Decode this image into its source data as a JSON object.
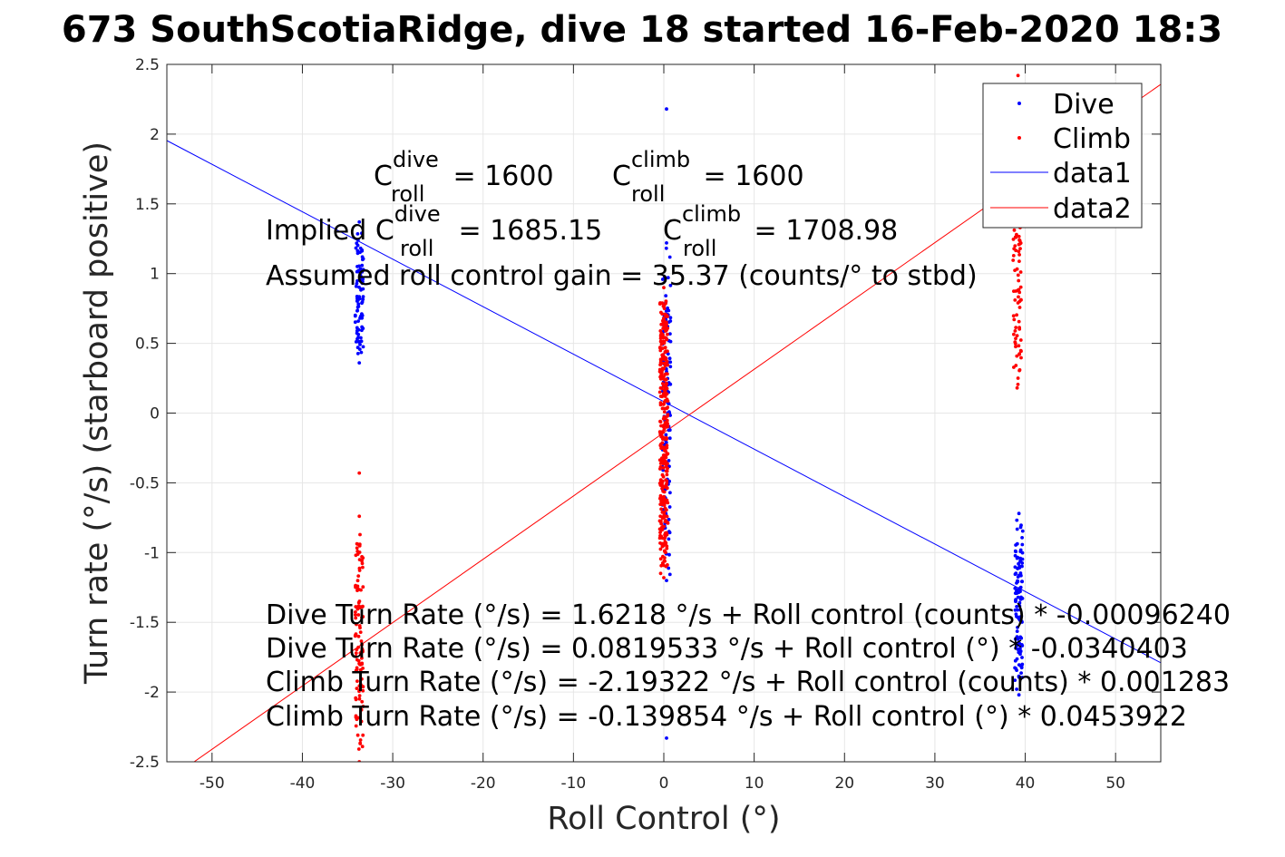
{
  "chart_data": {
    "type": "scatter",
    "title": "673 SouthScotiaRidge, dive 18 started 16-Feb-2020 18:3",
    "xlabel": "Roll Control (°)",
    "ylabel": "Turn rate (°/s) (starboard positive)",
    "xlim": [
      -55,
      55
    ],
    "ylim": [
      -2.5,
      2.5
    ],
    "xticks": [
      -50,
      -40,
      -30,
      -20,
      -10,
      0,
      10,
      20,
      30,
      40,
      50
    ],
    "yticks": [
      -2.5,
      -2,
      -1.5,
      -1,
      -0.5,
      0,
      0.5,
      1,
      1.5,
      2,
      2.5
    ],
    "xtick_labels": [
      "-50",
      "-40",
      "-30",
      "-20",
      "-10",
      "0",
      "10",
      "20",
      "30",
      "40",
      "50"
    ],
    "ytick_labels": [
      "-2.5",
      "-2",
      "-1.5",
      "-1",
      "-0.5",
      "0",
      "0.5",
      "1",
      "1.5",
      "2",
      "2.5"
    ],
    "grid": true,
    "legend_position": "top-right",
    "series": [
      {
        "name": "Dive",
        "kind": "points",
        "color": "#0000ff",
        "clusters": [
          {
            "x": -33.7,
            "ymin": 0.36,
            "ymax": 1.37,
            "count": 90
          },
          {
            "x": 0.3,
            "ymin": -1.2,
            "ymax": 1.22,
            "count": 110
          },
          {
            "x": 39.3,
            "ymin": -2.02,
            "ymax": -0.72,
            "count": 110
          }
        ],
        "points": [
          [
            0.3,
            2.18
          ],
          [
            0.3,
            -2.33
          ]
        ]
      },
      {
        "name": "Climb",
        "kind": "points",
        "color": "#ff0000",
        "clusters": [
          {
            "x": -33.7,
            "ymin": -2.5,
            "ymax": -0.74,
            "count": 110
          },
          {
            "x": 0.0,
            "ymin": -1.18,
            "ymax": 0.9,
            "count": 330
          },
          {
            "x": 39.1,
            "ymin": 0.18,
            "ymax": 1.45,
            "count": 70
          }
        ],
        "points": [
          [
            -33.7,
            -0.43
          ],
          [
            39.2,
            2.42
          ]
        ]
      },
      {
        "name": "data1",
        "kind": "line",
        "color": "#0000ff",
        "x": [
          -55,
          55
        ],
        "y": [
          1.954,
          -1.79
        ]
      },
      {
        "name": "data2",
        "kind": "line",
        "color": "#ff0000",
        "x": [
          -55,
          55
        ],
        "y": [
          -2.637,
          2.357
        ]
      }
    ],
    "annotations": {
      "c_dive_main": "C",
      "c_dive_sup": "dive",
      "c_dive_sub": "roll",
      "c_dive_val": " = 1600",
      "c_climb_main": "C",
      "c_climb_sup": "climb",
      "c_climb_sub": "roll",
      "c_climb_val": " = 1600",
      "implied_prefix": "Implied C",
      "implied_dive_sup": "dive",
      "implied_dive_sub": "roll",
      "implied_dive_val": " = 1685.15",
      "implied_climb_main": "C",
      "implied_climb_sup": "climb",
      "implied_climb_sub": "roll",
      "implied_climb_val": " = 1708.98",
      "gain": "Assumed roll control gain = 35.37 (counts/° to stbd)",
      "eq1": "Dive Turn Rate (°/s) = 1.6218 °/s + Roll control (counts) * -0.00096240",
      "eq2": "Dive Turn Rate (°/s) = 0.0819533 °/s + Roll control (°) * -0.0340403",
      "eq3": "Climb Turn Rate (°/s) = -2.19322 °/s + Roll control (counts) * 0.001283",
      "eq4": "Climb Turn Rate (°/s) = -0.139854 °/s + Roll control (°) * 0.0453922"
    }
  }
}
